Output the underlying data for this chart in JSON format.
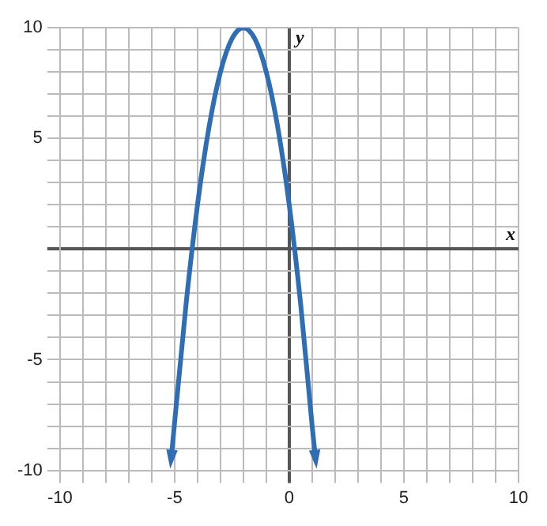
{
  "chart_data": {
    "type": "line",
    "xlabel": "x",
    "ylabel": "y",
    "x": [
      -5.15,
      -4.5,
      -4,
      -3.5,
      -3,
      -2.5,
      -2,
      -1.5,
      -1,
      -0.5,
      0,
      0.5,
      1,
      1.15
    ],
    "series": [
      {
        "color": "#2f6db5",
        "values": [
          -9.5,
          -2.5,
          2,
          5.5,
          8,
          9.5,
          10,
          9.5,
          8,
          5.5,
          2,
          -2.5,
          -8,
          -9.5
        ]
      }
    ],
    "xlim": [
      -10,
      10
    ],
    "ylim": [
      -10,
      10
    ],
    "xticks": [
      -10,
      {
        "value": -9,
        "label": null
      },
      {
        "value": -8,
        "label": null
      },
      {
        "value": -7,
        "label": null
      },
      {
        "value": -6,
        "label": null
      },
      -5,
      {
        "value": -4,
        "label": null
      },
      {
        "value": -3,
        "label": null
      },
      {
        "value": -2,
        "label": null
      },
      {
        "value": -1,
        "label": null
      },
      0,
      {
        "value": 1,
        "label": null
      },
      {
        "value": 2,
        "label": null
      },
      {
        "value": 3,
        "label": null
      },
      {
        "value": 4,
        "label": null
      },
      5,
      {
        "value": 6,
        "label": null
      },
      {
        "value": 7,
        "label": null
      },
      {
        "value": 8,
        "label": null
      },
      {
        "value": 9,
        "label": null
      },
      10
    ],
    "yticks": [
      -10,
      {
        "value": -9,
        "label": null
      },
      {
        "value": -8,
        "label": null
      },
      {
        "value": -7,
        "label": null
      },
      {
        "value": -6,
        "label": null
      },
      -5,
      {
        "value": -4,
        "label": null
      },
      {
        "value": -3,
        "label": null
      },
      {
        "value": -2,
        "label": null
      },
      {
        "value": -1,
        "label": null
      },
      {
        "value": 0,
        "label": null
      },
      {
        "value": 1,
        "label": null
      },
      {
        "value": 2,
        "label": null
      },
      {
        "value": 3,
        "label": null
      },
      {
        "value": 4,
        "label": null
      },
      5,
      {
        "value": 6,
        "label": null
      },
      {
        "value": 7,
        "label": null
      },
      {
        "value": 8,
        "label": null
      },
      {
        "value": 9,
        "label": null
      },
      10
    ],
    "grid": true,
    "marker": "none",
    "line_style": "solid",
    "legend": false
  }
}
